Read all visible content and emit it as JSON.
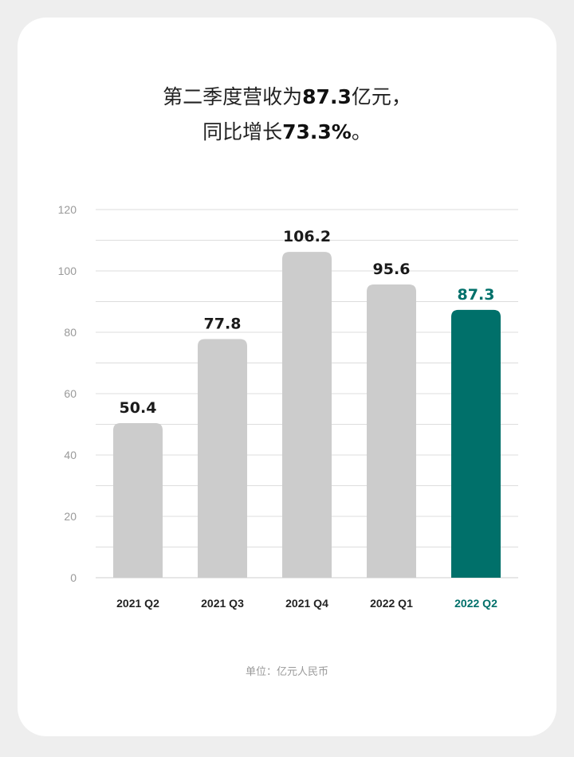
{
  "headline": {
    "line1_prefix": "第二季度营收为",
    "line1_value": "87.3",
    "line1_suffix": "亿元，",
    "line2_prefix": "同比增长",
    "line2_value": "73.3%",
    "line2_suffix": "。"
  },
  "unit_note": "单位：亿元人民币",
  "colors": {
    "bar_default": "#cccccc",
    "bar_highlight": "#00706a",
    "value_default": "#1a1a1a",
    "value_highlight": "#00706a",
    "grid": "#dddddd",
    "tick": "#999999"
  },
  "chart_data": {
    "type": "bar",
    "categories": [
      "2021 Q2",
      "2021 Q3",
      "2021 Q4",
      "2022 Q1",
      "2022 Q2"
    ],
    "values": [
      50.4,
      77.8,
      106.2,
      95.6,
      87.3
    ],
    "value_labels": [
      "50.4",
      "77.8",
      "106.2",
      "95.6",
      "87.3"
    ],
    "highlight_index": 4,
    "ylim": [
      0,
      120
    ],
    "yticks": [
      0,
      20,
      40,
      60,
      80,
      100,
      120
    ],
    "grid": true,
    "title": "",
    "xlabel": "",
    "ylabel": ""
  }
}
